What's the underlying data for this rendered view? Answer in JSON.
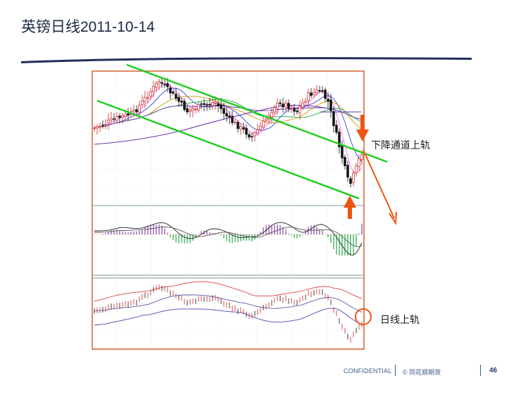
{
  "title": "英镑日线2011-10-14",
  "annotations": {
    "channel_label": "下降通道上轨",
    "daily_label": "日线上轨"
  },
  "footer": {
    "confidential": "CONFIDENTIAL",
    "copyright": "© 同花顺期货",
    "page_number": "46"
  },
  "colors": {
    "channel_line": "#22cc22",
    "arrow": "#ee5511",
    "frame": "#d06030",
    "candle_up": "#cc2222",
    "candle_down": "#111111",
    "macd_pos": "#8844aa",
    "macd_neg": "#22aa44",
    "title_text": "#1c2a44",
    "swoosh": "#1f2f5a"
  },
  "chart_data": {
    "type": "candlestick",
    "panels": [
      "price",
      "macd",
      "bollinger"
    ],
    "candles": 96,
    "description_series": [
      "price candles",
      "moving averages",
      "MACD histogram",
      "Bollinger bands"
    ]
  }
}
